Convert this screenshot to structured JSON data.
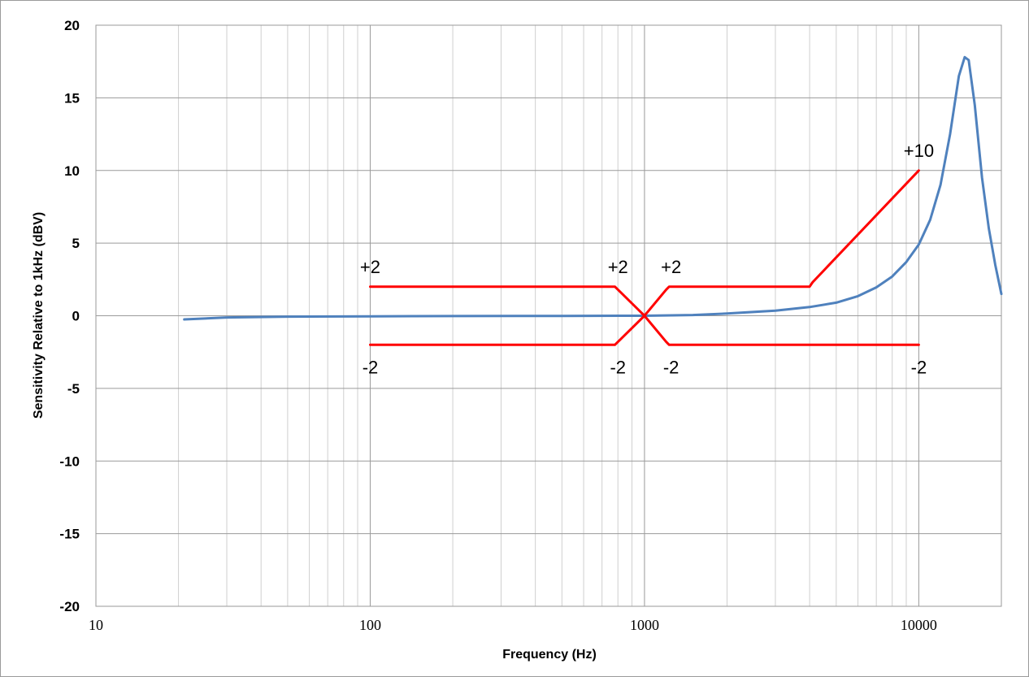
{
  "chart_data": {
    "type": "line",
    "title": "",
    "xlabel": "Frequency (Hz)",
    "ylabel": "Sensitivity Relative to 1kHz (dBV)",
    "x_scale": "log",
    "xlim": [
      10,
      20000
    ],
    "ylim": [
      -20,
      20
    ],
    "x_ticks": [
      "10",
      "100",
      "1000",
      "10000"
    ],
    "y_ticks": [
      "20",
      "15",
      "10",
      "5",
      "0",
      "-5",
      "-10",
      "-15",
      "-20"
    ],
    "grid": true,
    "legend": "none",
    "series": [
      {
        "color": "#4f81bd",
        "points": [
          [
            21,
            -0.25
          ],
          [
            30,
            -0.12
          ],
          [
            50,
            -0.06
          ],
          [
            100,
            -0.04
          ],
          [
            200,
            -0.02
          ],
          [
            500,
            -0.01
          ],
          [
            1000,
            0
          ],
          [
            1500,
            0.05
          ],
          [
            2000,
            0.15
          ],
          [
            3000,
            0.35
          ],
          [
            4000,
            0.6
          ],
          [
            5000,
            0.9
          ],
          [
            6000,
            1.35
          ],
          [
            7000,
            1.95
          ],
          [
            8000,
            2.7
          ],
          [
            9000,
            3.7
          ],
          [
            10000,
            4.9
          ],
          [
            11000,
            6.6
          ],
          [
            12000,
            9.0
          ],
          [
            13000,
            12.5
          ],
          [
            14000,
            16.5
          ],
          [
            14700,
            17.8
          ],
          [
            15200,
            17.6
          ],
          [
            16000,
            14.5
          ],
          [
            17000,
            9.5
          ],
          [
            18000,
            6.0
          ],
          [
            19000,
            3.5
          ],
          [
            20000,
            1.5
          ]
        ]
      },
      {
        "color": "#ff0000",
        "points": [
          [
            100,
            2
          ],
          [
            780,
            2
          ],
          [
            800,
            1.8
          ],
          [
            1000,
            0
          ],
          [
            1200,
            1.8
          ],
          [
            1230,
            2
          ],
          [
            4000,
            2
          ],
          [
            4100,
            2.3
          ],
          [
            10000,
            10
          ]
        ]
      },
      {
        "color": "#ff0000",
        "points": [
          [
            100,
            -2
          ],
          [
            780,
            -2
          ],
          [
            800,
            -1.8
          ],
          [
            1000,
            0
          ],
          [
            1200,
            -1.8
          ],
          [
            1230,
            -2
          ],
          [
            10000,
            -2
          ]
        ]
      }
    ],
    "annotations": [
      {
        "text": "+2",
        "x": 100,
        "y": 2,
        "place": "above"
      },
      {
        "text": "+2",
        "x": 800,
        "y": 2,
        "place": "above"
      },
      {
        "text": "+2",
        "x": 1250,
        "y": 2,
        "place": "above"
      },
      {
        "text": "+10",
        "x": 10000,
        "y": 10,
        "place": "above"
      },
      {
        "text": "-2",
        "x": 100,
        "y": -2,
        "place": "below"
      },
      {
        "text": "-2",
        "x": 800,
        "y": -2,
        "place": "below"
      },
      {
        "text": "-2",
        "x": 1250,
        "y": -2,
        "place": "below"
      },
      {
        "text": "-2",
        "x": 10000,
        "y": -2,
        "place": "below"
      }
    ]
  }
}
